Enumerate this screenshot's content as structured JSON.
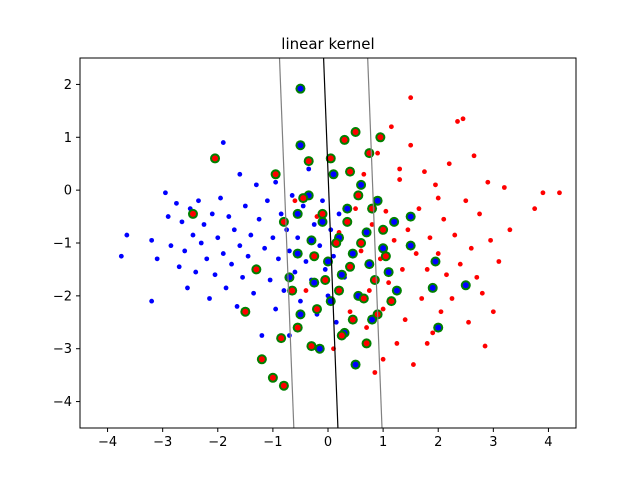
{
  "chart_data": {
    "type": "scatter",
    "title": "linear kernel",
    "xlabel": "",
    "ylabel": "",
    "xlim": [
      -4.5,
      4.5
    ],
    "ylim": [
      -4.5,
      2.5
    ],
    "xticks": [
      -4,
      -3,
      -2,
      -1,
      0,
      1,
      2,
      3,
      4
    ],
    "yticks": [
      -4,
      -3,
      -2,
      -1,
      0,
      1,
      2
    ],
    "grid": false,
    "legend": "none",
    "colors": {
      "class_a": "#0000ff",
      "class_b": "#ff0000",
      "support_vector_ring": "#008000",
      "decision_line": "#000000",
      "margin_line": "#808080"
    },
    "lines": [
      {
        "name": "decision-boundary",
        "points": [
          [
            -0.08,
            2.5
          ],
          [
            0.18,
            -4.5
          ]
        ]
      },
      {
        "name": "margin-upper",
        "points": [
          [
            -0.88,
            2.5
          ],
          [
            -0.62,
            -4.5
          ]
        ]
      },
      {
        "name": "margin-lower",
        "points": [
          [
            0.72,
            2.5
          ],
          [
            0.98,
            -4.5
          ]
        ]
      }
    ],
    "series": [
      {
        "class": "blue",
        "points": [
          [
            -3.75,
            -1.25
          ],
          [
            -3.65,
            -0.85
          ],
          [
            -3.2,
            -2.1
          ],
          [
            -3.2,
            -0.95
          ],
          [
            -3.1,
            -1.3
          ],
          [
            -2.95,
            -0.05
          ],
          [
            -2.9,
            -0.5
          ],
          [
            -2.85,
            -1.05
          ],
          [
            -2.75,
            -0.25
          ],
          [
            -2.7,
            -1.45
          ],
          [
            -2.65,
            -0.6
          ],
          [
            -2.6,
            -1.15
          ],
          [
            -2.55,
            -1.85
          ],
          [
            -2.5,
            -0.35
          ],
          [
            -2.45,
            -0.85
          ],
          [
            -2.4,
            -1.55
          ],
          [
            -2.35,
            -0.2
          ],
          [
            -2.3,
            -1.0
          ],
          [
            -2.25,
            -0.65
          ],
          [
            -2.2,
            -1.3
          ],
          [
            -2.15,
            -2.05
          ],
          [
            -2.1,
            -0.45
          ],
          [
            -2.05,
            -1.6
          ],
          [
            -2.0,
            -0.9
          ],
          [
            -1.95,
            -0.15
          ],
          [
            -1.9,
            0.9
          ],
          [
            -1.9,
            -1.2
          ],
          [
            -1.85,
            -1.85
          ],
          [
            -1.8,
            -0.5
          ],
          [
            -1.75,
            -1.4
          ],
          [
            -1.7,
            -0.75
          ],
          [
            -1.65,
            -2.2
          ],
          [
            -1.6,
            0.3
          ],
          [
            -1.6,
            -1.05
          ],
          [
            -1.55,
            -1.65
          ],
          [
            -1.5,
            -0.3
          ],
          [
            -1.45,
            -1.25
          ],
          [
            -1.4,
            -0.85
          ],
          [
            -1.35,
            -1.95
          ],
          [
            -1.3,
            0.1
          ],
          [
            -1.3,
            -1.45
          ],
          [
            -1.25,
            -0.55
          ],
          [
            -1.2,
            -2.75
          ],
          [
            -1.15,
            -1.1
          ],
          [
            -1.1,
            -0.2
          ],
          [
            -1.05,
            -1.7
          ],
          [
            -1.0,
            -0.9
          ],
          [
            -0.95,
            0.15
          ],
          [
            -0.95,
            -2.25
          ],
          [
            -0.9,
            -1.3
          ],
          [
            -0.85,
            -0.45
          ],
          [
            -0.8,
            -1.9
          ],
          [
            -0.75,
            -0.75
          ],
          [
            -0.7,
            -2.75
          ],
          [
            -0.7,
            -1.15
          ],
          [
            -0.65,
            -0.1
          ],
          [
            -0.6,
            -1.55
          ],
          [
            -0.55,
            -0.9
          ],
          [
            -0.5,
            -2.1
          ],
          [
            -0.45,
            -0.3
          ],
          [
            -0.4,
            -1.35
          ],
          [
            -0.35,
            0.4
          ],
          [
            -0.3,
            -1.7
          ],
          [
            -0.25,
            -0.65
          ],
          [
            -0.2,
            -2.35
          ],
          [
            -0.15,
            -1.05
          ],
          [
            -0.1,
            -0.2
          ],
          [
            -0.05,
            -1.5
          ],
          [
            0.0,
            -2.0
          ],
          [
            0.05,
            -0.75
          ],
          [
            0.1,
            -1.25
          ],
          [
            0.15,
            -2.5
          ],
          [
            0.2,
            -0.45
          ],
          [
            0.3,
            -1.65
          ]
        ]
      },
      {
        "class": "red",
        "points": [
          [
            4.2,
            -0.05
          ],
          [
            3.9,
            -0.05
          ],
          [
            3.75,
            -0.35
          ],
          [
            3.3,
            -0.75
          ],
          [
            3.2,
            0.05
          ],
          [
            3.1,
            -1.35
          ],
          [
            3.0,
            -2.3
          ],
          [
            2.95,
            -0.95
          ],
          [
            2.9,
            0.15
          ],
          [
            2.85,
            -2.95
          ],
          [
            2.8,
            -1.95
          ],
          [
            2.75,
            -0.45
          ],
          [
            2.7,
            -1.65
          ],
          [
            2.65,
            0.65
          ],
          [
            2.6,
            -1.1
          ],
          [
            2.55,
            -2.5
          ],
          [
            2.5,
            -0.2
          ],
          [
            2.45,
            1.35
          ],
          [
            2.4,
            -1.4
          ],
          [
            2.35,
            1.3
          ],
          [
            2.3,
            -0.85
          ],
          [
            2.25,
            -2.05
          ],
          [
            2.2,
            0.5
          ],
          [
            2.15,
            -1.6
          ],
          [
            2.1,
            -0.55
          ],
          [
            2.05,
            -2.3
          ],
          [
            2.0,
            -1.2
          ],
          [
            1.95,
            0.1
          ],
          [
            1.9,
            -2.7
          ],
          [
            1.85,
            -0.9
          ],
          [
            1.8,
            -1.5
          ],
          [
            1.75,
            0.35
          ],
          [
            1.7,
            -2.05
          ],
          [
            1.65,
            -0.35
          ],
          [
            1.6,
            -1.2
          ],
          [
            1.55,
            -3.3
          ],
          [
            1.5,
            0.85
          ],
          [
            1.45,
            -0.75
          ],
          [
            1.4,
            -2.45
          ],
          [
            1.35,
            -1.5
          ],
          [
            1.3,
            0.2
          ],
          [
            1.25,
            -2.9
          ],
          [
            1.2,
            -0.95
          ],
          [
            1.15,
            1.2
          ],
          [
            1.1,
            -1.75
          ],
          [
            1.05,
            -0.4
          ],
          [
            1.0,
            -2.25
          ],
          [
            0.95,
            -1.3
          ],
          [
            0.9,
            0.7
          ],
          [
            0.85,
            -3.45
          ],
          [
            0.8,
            -0.65
          ],
          [
            0.75,
            -1.9
          ],
          [
            0.7,
            -2.6
          ],
          [
            0.65,
            0.3
          ],
          [
            0.6,
            -1.15
          ],
          [
            0.5,
            -0.35
          ],
          [
            0.4,
            -2.3
          ],
          [
            0.3,
            -1.6
          ],
          [
            0.2,
            -0.8
          ],
          [
            0.1,
            -3.0
          ],
          [
            0.0,
            -1.3
          ],
          [
            -0.2,
            -0.5
          ],
          [
            -0.4,
            -1.9
          ],
          [
            -0.6,
            -0.2
          ],
          [
            1.5,
            1.75
          ],
          [
            1.3,
            0.4
          ],
          [
            1.0,
            -3.2
          ],
          [
            1.8,
            -2.9
          ],
          [
            2.0,
            -0.15
          ]
        ]
      },
      {
        "class": "support-vector-blue",
        "points": [
          [
            -0.5,
            1.92
          ],
          [
            -0.5,
            0.85
          ],
          [
            -0.55,
            -0.45
          ],
          [
            -0.55,
            -1.2
          ],
          [
            -0.5,
            -2.35
          ],
          [
            -0.7,
            -1.65
          ],
          [
            -0.35,
            -0.1
          ],
          [
            -0.3,
            -0.95
          ],
          [
            -0.25,
            -1.75
          ],
          [
            -0.15,
            -3.0
          ],
          [
            -0.1,
            -0.6
          ],
          [
            0.0,
            -1.35
          ],
          [
            0.05,
            -2.1
          ],
          [
            0.1,
            0.3
          ],
          [
            0.2,
            -0.9
          ],
          [
            0.25,
            -1.6
          ],
          [
            0.3,
            -2.7
          ],
          [
            0.35,
            -0.35
          ],
          [
            0.45,
            -1.2
          ],
          [
            0.55,
            -2.0
          ],
          [
            0.6,
            0.1
          ],
          [
            0.7,
            -0.8
          ],
          [
            0.75,
            -1.4
          ],
          [
            0.8,
            -2.45
          ],
          [
            0.9,
            -0.2
          ],
          [
            1.0,
            -1.1
          ],
          [
            1.1,
            -1.55
          ],
          [
            1.2,
            -0.6
          ],
          [
            1.25,
            -1.9
          ],
          [
            1.5,
            -0.5
          ],
          [
            1.5,
            -1.05
          ],
          [
            1.9,
            -1.85
          ],
          [
            2.0,
            -2.6
          ],
          [
            2.5,
            -1.8
          ],
          [
            1.95,
            -1.35
          ],
          [
            0.5,
            -3.3
          ]
        ]
      },
      {
        "class": "support-vector-red",
        "points": [
          [
            -2.05,
            0.6
          ],
          [
            -2.45,
            -0.45
          ],
          [
            -1.5,
            -2.3
          ],
          [
            -1.3,
            -1.5
          ],
          [
            -1.2,
            -3.2
          ],
          [
            -1.0,
            -3.55
          ],
          [
            -0.8,
            -3.7
          ],
          [
            -0.95,
            0.3
          ],
          [
            -0.85,
            -2.8
          ],
          [
            -0.8,
            -0.6
          ],
          [
            -0.65,
            -1.9
          ],
          [
            -0.55,
            -2.6
          ],
          [
            -0.45,
            -0.15
          ],
          [
            -0.35,
            0.55
          ],
          [
            -0.25,
            -1.25
          ],
          [
            -0.2,
            -2.25
          ],
          [
            -0.1,
            -0.45
          ],
          [
            0.05,
            0.6
          ],
          [
            0.15,
            -1.0
          ],
          [
            0.2,
            -1.9
          ],
          [
            0.25,
            -2.75
          ],
          [
            0.3,
            0.95
          ],
          [
            0.35,
            -0.6
          ],
          [
            0.4,
            -1.45
          ],
          [
            0.45,
            -2.45
          ],
          [
            0.5,
            1.1
          ],
          [
            0.55,
            -0.1
          ],
          [
            0.6,
            -1.0
          ],
          [
            0.65,
            -2.05
          ],
          [
            0.7,
            -2.9
          ],
          [
            0.75,
            0.7
          ],
          [
            0.8,
            -0.35
          ],
          [
            0.85,
            -1.7
          ],
          [
            0.9,
            -2.35
          ],
          [
            0.95,
            1.0
          ],
          [
            1.0,
            -0.75
          ],
          [
            1.05,
            -1.25
          ],
          [
            1.15,
            -2.1
          ],
          [
            0.4,
            0.35
          ],
          [
            -0.05,
            -1.7
          ],
          [
            -0.3,
            -2.95
          ]
        ]
      }
    ]
  }
}
